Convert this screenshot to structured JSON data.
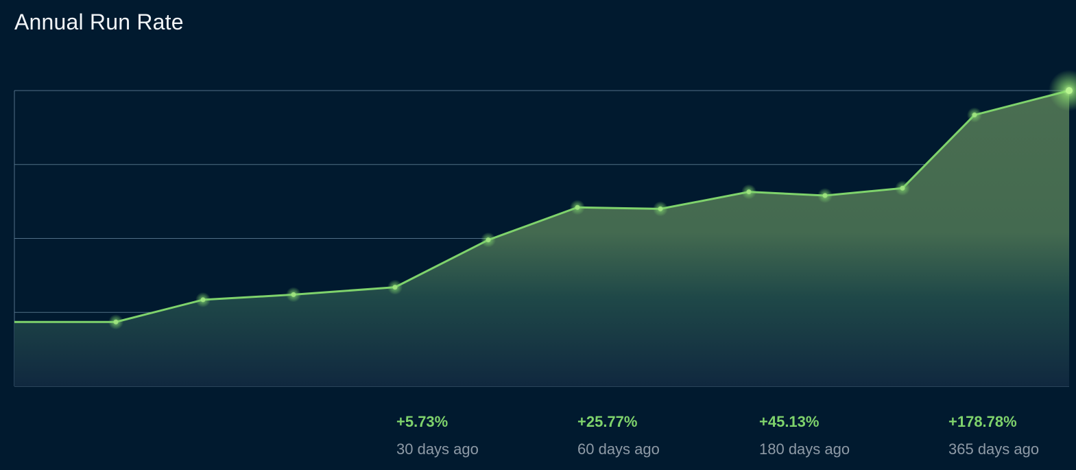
{
  "header": {
    "title": "Annual Run Rate"
  },
  "colors": {
    "background": "#011a2f",
    "line": "#7fd36c",
    "grid": "#5f7f96",
    "positive": "#7fd36c",
    "label": "#8e9aa6"
  },
  "chart_data": {
    "type": "area",
    "title": "Annual Run Rate",
    "xlabel": "",
    "ylabel": "",
    "grid": true,
    "legend": "none",
    "ylim": [
      0,
      4
    ],
    "x": [
      0,
      1,
      2,
      3,
      4,
      5,
      6,
      7,
      8,
      9,
      10,
      11,
      12
    ],
    "series": [
      {
        "values": [
          0.87,
          0.87,
          1.17,
          1.24,
          1.34,
          1.98,
          2.42,
          2.4,
          2.63,
          2.58,
          2.68,
          3.67,
          4.0
        ]
      }
    ]
  },
  "stats": [
    {
      "value": "+5.73%",
      "label": "30 days ago"
    },
    {
      "value": "+25.77%",
      "label": "60 days ago"
    },
    {
      "value": "+45.13%",
      "label": "180 days ago"
    },
    {
      "value": "+178.78%",
      "label": "365 days ago"
    }
  ]
}
